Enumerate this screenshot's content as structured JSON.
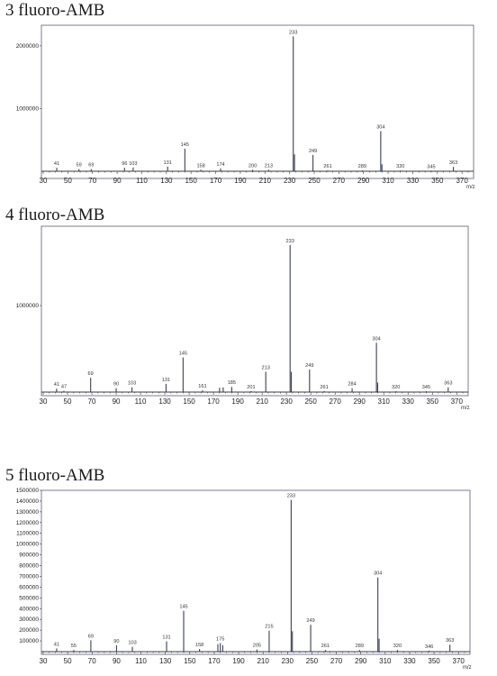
{
  "chart_data": [
    {
      "type": "bar",
      "title": "3 fluoro-AMB",
      "xlabel": "m/z",
      "ylabel": "",
      "xlim": [
        30,
        375
      ],
      "ylim": [
        0,
        2300000
      ],
      "x_ticks": [
        30,
        50,
        70,
        90,
        110,
        130,
        150,
        170,
        190,
        210,
        230,
        250,
        270,
        290,
        310,
        330,
        350,
        370
      ],
      "y_ticks": [
        1000000,
        2000000
      ],
      "y_tick_labels": [
        "1000000",
        "2000000"
      ],
      "peaks": [
        {
          "x": 41,
          "y": 55000,
          "label": "41"
        },
        {
          "x": 59,
          "y": 35000,
          "label": "59"
        },
        {
          "x": 69,
          "y": 35000,
          "label": "69"
        },
        {
          "x": 96,
          "y": 55000,
          "label": "96"
        },
        {
          "x": 103,
          "y": 60000,
          "label": "103"
        },
        {
          "x": 131,
          "y": 75000,
          "label": "131"
        },
        {
          "x": 145,
          "y": 360000,
          "label": "145"
        },
        {
          "x": 158,
          "y": 25000,
          "label": "158"
        },
        {
          "x": 174,
          "y": 45000,
          "label": "174"
        },
        {
          "x": 200,
          "y": 25000,
          "label": "200"
        },
        {
          "x": 213,
          "y": 25000,
          "label": "213"
        },
        {
          "x": 233,
          "y": 2150000,
          "label": "233"
        },
        {
          "x": 234,
          "y": 270000,
          "label": ""
        },
        {
          "x": 249,
          "y": 260000,
          "label": "249"
        },
        {
          "x": 261,
          "y": 15000,
          "label": "261"
        },
        {
          "x": 289,
          "y": 15000,
          "label": "289"
        },
        {
          "x": 304,
          "y": 640000,
          "label": "304"
        },
        {
          "x": 305,
          "y": 110000,
          "label": ""
        },
        {
          "x": 320,
          "y": 12000,
          "label": "320"
        },
        {
          "x": 345,
          "y": 10000,
          "label": "345"
        },
        {
          "x": 363,
          "y": 70000,
          "label": "363"
        }
      ]
    },
    {
      "type": "bar",
      "title": "4 fluoro-AMB",
      "xlabel": "m/z",
      "ylabel": "",
      "xlim": [
        30,
        375
      ],
      "ylim": [
        0,
        1750000
      ],
      "x_ticks": [
        30,
        50,
        70,
        90,
        110,
        130,
        150,
        170,
        190,
        210,
        230,
        250,
        270,
        290,
        310,
        330,
        350,
        370
      ],
      "y_ticks": [
        1000000
      ],
      "y_tick_labels": [
        "1000000"
      ],
      "peaks": [
        {
          "x": 41,
          "y": 40000,
          "label": "41"
        },
        {
          "x": 47,
          "y": 15000,
          "label": "47"
        },
        {
          "x": 69,
          "y": 165000,
          "label": "69"
        },
        {
          "x": 90,
          "y": 45000,
          "label": "90"
        },
        {
          "x": 103,
          "y": 55000,
          "label": "103"
        },
        {
          "x": 131,
          "y": 95000,
          "label": "131"
        },
        {
          "x": 145,
          "y": 400000,
          "label": "145"
        },
        {
          "x": 161,
          "y": 20000,
          "label": "161"
        },
        {
          "x": 175,
          "y": 50000,
          "label": ""
        },
        {
          "x": 178,
          "y": 55000,
          "label": ""
        },
        {
          "x": 185,
          "y": 60000,
          "label": "185"
        },
        {
          "x": 201,
          "y": 12000,
          "label": "201"
        },
        {
          "x": 213,
          "y": 235000,
          "label": "213"
        },
        {
          "x": 233,
          "y": 1700000,
          "label": "233"
        },
        {
          "x": 234,
          "y": 235000,
          "label": ""
        },
        {
          "x": 249,
          "y": 260000,
          "label": "249"
        },
        {
          "x": 261,
          "y": 12000,
          "label": "261"
        },
        {
          "x": 284,
          "y": 45000,
          "label": "284"
        },
        {
          "x": 304,
          "y": 570000,
          "label": "304"
        },
        {
          "x": 305,
          "y": 110000,
          "label": ""
        },
        {
          "x": 320,
          "y": 10000,
          "label": "320"
        },
        {
          "x": 345,
          "y": 10000,
          "label": "345"
        },
        {
          "x": 363,
          "y": 55000,
          "label": "363"
        }
      ]
    },
    {
      "type": "bar",
      "title": "5 fluoro-AMB",
      "xlabel": "m/z",
      "ylabel": "",
      "xlim": [
        30,
        375
      ],
      "ylim": [
        0,
        1500000
      ],
      "x_ticks": [
        30,
        50,
        70,
        90,
        110,
        130,
        150,
        170,
        190,
        210,
        230,
        250,
        270,
        290,
        310,
        330,
        350,
        370
      ],
      "y_ticks": [
        100000,
        200000,
        300000,
        400000,
        500000,
        600000,
        700000,
        800000,
        900000,
        1000000,
        1100000,
        1200000,
        1300000,
        1400000,
        1500000
      ],
      "y_tick_labels": [
        "100000",
        "200000",
        "300000",
        "400000",
        "500000",
        "600000",
        "700000",
        "800000",
        "900000",
        "1000000",
        "1100000",
        "1200000",
        "1300000",
        "1400000",
        "1500000"
      ],
      "peaks": [
        {
          "x": 41,
          "y": 30000,
          "label": "41"
        },
        {
          "x": 55,
          "y": 15000,
          "label": "55"
        },
        {
          "x": 69,
          "y": 105000,
          "label": "69"
        },
        {
          "x": 90,
          "y": 60000,
          "label": "90"
        },
        {
          "x": 103,
          "y": 45000,
          "label": "103"
        },
        {
          "x": 131,
          "y": 95000,
          "label": "131"
        },
        {
          "x": 145,
          "y": 380000,
          "label": "145"
        },
        {
          "x": 158,
          "y": 25000,
          "label": "158"
        },
        {
          "x": 173,
          "y": 70000,
          "label": ""
        },
        {
          "x": 175,
          "y": 80000,
          "label": "175"
        },
        {
          "x": 177,
          "y": 60000,
          "label": ""
        },
        {
          "x": 205,
          "y": 20000,
          "label": "205"
        },
        {
          "x": 215,
          "y": 195000,
          "label": "215"
        },
        {
          "x": 233,
          "y": 1410000,
          "label": "233"
        },
        {
          "x": 234,
          "y": 190000,
          "label": ""
        },
        {
          "x": 249,
          "y": 250000,
          "label": "249"
        },
        {
          "x": 261,
          "y": 15000,
          "label": "261"
        },
        {
          "x": 289,
          "y": 15000,
          "label": "289"
        },
        {
          "x": 304,
          "y": 690000,
          "label": "304"
        },
        {
          "x": 305,
          "y": 120000,
          "label": ""
        },
        {
          "x": 320,
          "y": 15000,
          "label": "320"
        },
        {
          "x": 346,
          "y": 10000,
          "label": "346"
        },
        {
          "x": 363,
          "y": 65000,
          "label": "363"
        }
      ]
    }
  ]
}
